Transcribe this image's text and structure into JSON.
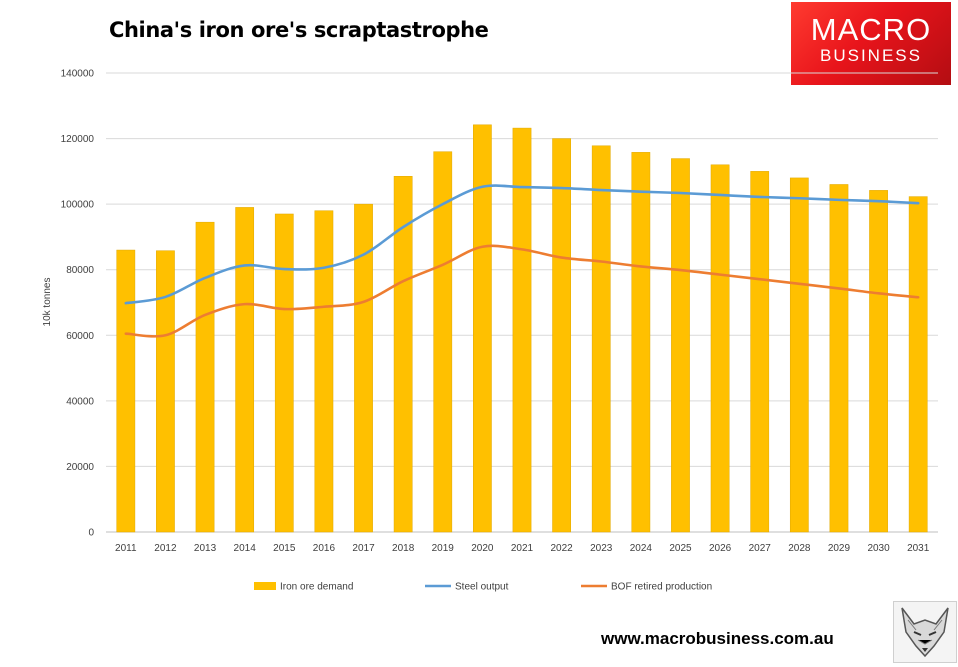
{
  "header": {
    "title": "China's iron ore's scraptastrophe"
  },
  "logo": {
    "line1": "MACRO",
    "line2": "BUSINESS"
  },
  "footer": {
    "website": "www.macrobusiness.com.au"
  },
  "chart_data": {
    "type": "bar",
    "title": "China's iron ore's scraptastrophe",
    "ylabel": "10k tonnes",
    "xlabel": "",
    "ylim": [
      0,
      140000
    ],
    "yticks": [
      0,
      20000,
      40000,
      60000,
      80000,
      100000,
      120000,
      140000
    ],
    "grid": true,
    "legend_position": "bottom",
    "categories": [
      "2011",
      "2012",
      "2013",
      "2014",
      "2015",
      "2016",
      "2017",
      "2018",
      "2019",
      "2020",
      "2021",
      "2022",
      "2023",
      "2024",
      "2025",
      "2026",
      "2027",
      "2028",
      "2029",
      "2030",
      "2031"
    ],
    "series": [
      {
        "name": "Iron ore demand",
        "type": "bar",
        "color": "#FFC000",
        "values": [
          86000,
          85800,
          94500,
          99000,
          97000,
          98000,
          100000,
          108500,
          116000,
          124200,
          123200,
          120000,
          117800,
          115800,
          113900,
          112000,
          110000,
          108000,
          106000,
          104200,
          102300
        ]
      },
      {
        "name": "Steel output",
        "type": "line",
        "color": "#5B9BD5",
        "values": [
          69800,
          71700,
          77500,
          81300,
          80200,
          80600,
          84600,
          93000,
          100000,
          105300,
          105200,
          104900,
          104300,
          103800,
          103400,
          102800,
          102200,
          101800,
          101300,
          100900,
          100300
        ]
      },
      {
        "name": "BOF retired production",
        "type": "line",
        "color": "#ED7D31",
        "values": [
          60500,
          60000,
          66200,
          69500,
          68000,
          68700,
          70200,
          76500,
          81500,
          87000,
          86200,
          83700,
          82500,
          81000,
          79900,
          78500,
          77100,
          75700,
          74300,
          72800,
          71600
        ]
      }
    ]
  }
}
